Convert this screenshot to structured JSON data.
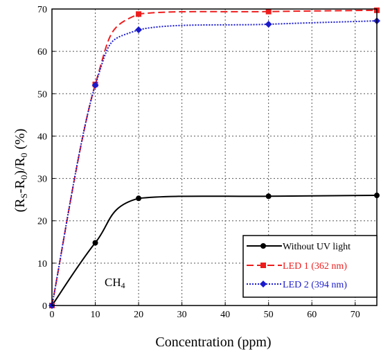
{
  "chart_data": {
    "type": "line",
    "xlabel": "Concentration (ppm)",
    "ylabel": "(RS-R0)/R0 (%)",
    "ylabel_parts": {
      "open": "(R",
      "sub1": "S",
      "mid": "-R",
      "sub2": "0",
      "mid2": ")/R",
      "sub3": "0",
      "tail": " (%)"
    },
    "xlim": [
      0,
      75
    ],
    "ylim": [
      0,
      70
    ],
    "x_ticks": [
      "0",
      "10",
      "20",
      "30",
      "40",
      "50",
      "60",
      "70"
    ],
    "y_ticks": [
      "0",
      "10",
      "20",
      "30",
      "40",
      "50",
      "60",
      "70"
    ],
    "grid": "dotted",
    "legend_position": "bottom-right",
    "annotation": {
      "text": "CH",
      "sub": "4"
    },
    "series": [
      {
        "name": "Without UV light",
        "color": "#000000",
        "line": "solid",
        "marker": "circle",
        "x": [
          0,
          10,
          20,
          50,
          75
        ],
        "y": [
          0,
          14.8,
          25.3,
          25.8,
          26.0
        ]
      },
      {
        "name": "LED 1 (362 nm)",
        "color": "#ee1c1c",
        "line": "dashed",
        "marker": "square",
        "x": [
          0,
          10,
          20,
          50,
          75
        ],
        "y": [
          0,
          52.2,
          68.8,
          69.4,
          69.7
        ]
      },
      {
        "name": "LED 2 (394 nm)",
        "color": "#1a1acc",
        "line": "dotted",
        "marker": "diamond",
        "x": [
          0,
          10,
          20,
          50,
          75
        ],
        "y": [
          0,
          52.0,
          65.1,
          66.4,
          67.2
        ]
      }
    ]
  }
}
